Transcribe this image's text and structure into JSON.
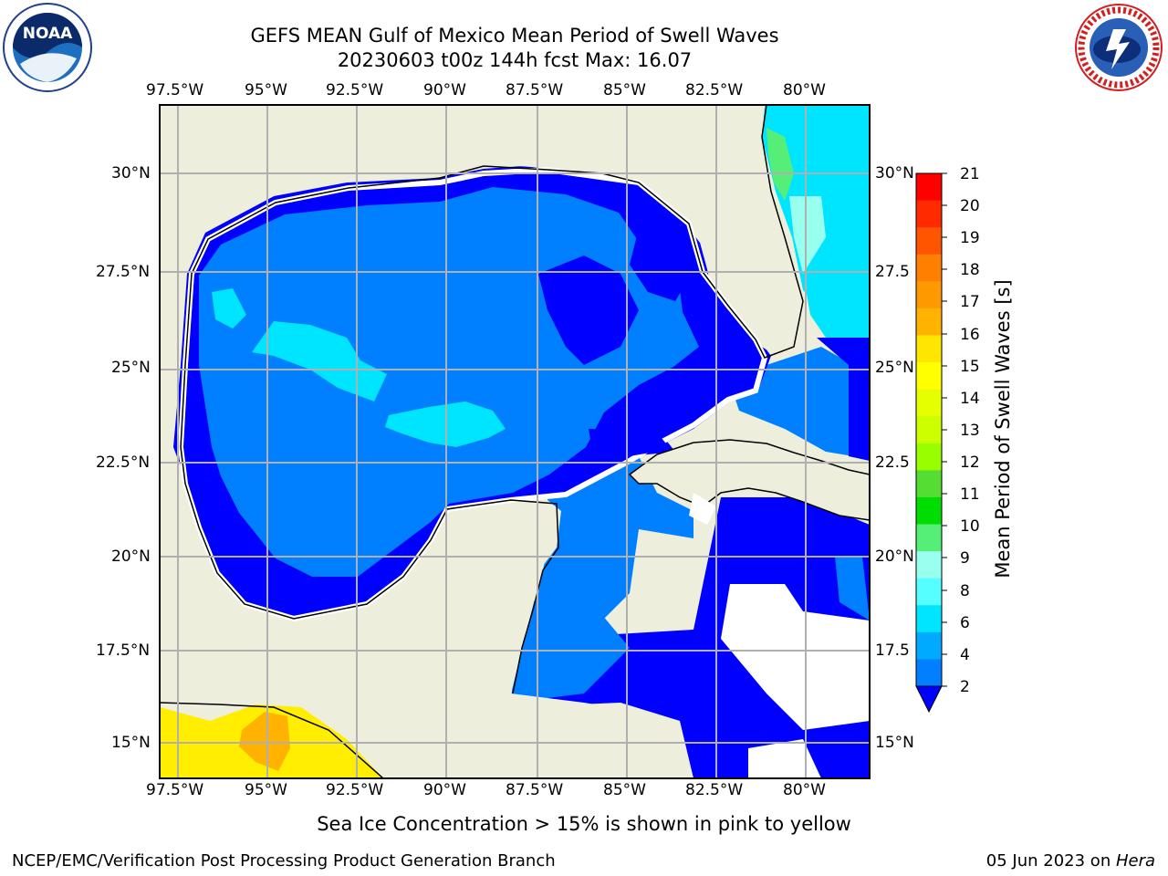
{
  "header": {
    "title_line1": "GEFS MEAN Gulf of Mexico Mean Period of Swell Waves",
    "title_line2": "20230603 t00z 144h fcst   Max: 16.07"
  },
  "logos": {
    "left": {
      "icon": "noaa-logo-icon",
      "text": "NOAA"
    },
    "right": {
      "icon": "nws-logo-icon",
      "text": "NATIONAL WEATHER SERVICE"
    }
  },
  "map": {
    "lon_labels": [
      "97.5°W",
      "95°W",
      "92.5°W",
      "90°W",
      "87.5°W",
      "85°W",
      "82.5°W",
      "80°W"
    ],
    "lat_labels": [
      "30°N",
      "27.5°N",
      "25°N",
      "22.5°N",
      "20°N",
      "17.5°N",
      "15°N"
    ],
    "lat_labels_right": [
      "30°N",
      "27.5",
      "25°N",
      "22.5",
      "20°N",
      "17.5",
      "15°N"
    ],
    "colors": {
      "land": "#eeeedd",
      "ocean_low": "#0000ff",
      "ocean_mid": "#0080ff",
      "ice_yellow": "#ffee00",
      "ice_orange": "#ffb300",
      "grid": "#b0b0b0"
    }
  },
  "colorbar": {
    "label": "Mean Period of Swell Waves [s]",
    "ticks": [
      "21",
      "20",
      "19",
      "18",
      "17",
      "16",
      "15",
      "14",
      "13",
      "12",
      "11",
      "10",
      "9",
      "8",
      "6",
      "4",
      "2"
    ],
    "colors": [
      "#ff0000",
      "#ff2a00",
      "#ff5500",
      "#ff7f00",
      "#ff9900",
      "#ffb300",
      "#ffe600",
      "#ffff00",
      "#e6ff00",
      "#ccff00",
      "#99ff00",
      "#55dd33",
      "#00dd00",
      "#55ee77",
      "#99ffee",
      "#55ffff",
      "#00e5ff",
      "#00aaff",
      "#0080ff"
    ]
  },
  "caption": "Sea Ice Concentration > 15% is shown in pink to yellow",
  "footer": {
    "left": "NCEP/EMC/Verification Post Processing Product Generation Branch",
    "right_date": "05 Jun 2023 on ",
    "right_host": "Hera"
  }
}
